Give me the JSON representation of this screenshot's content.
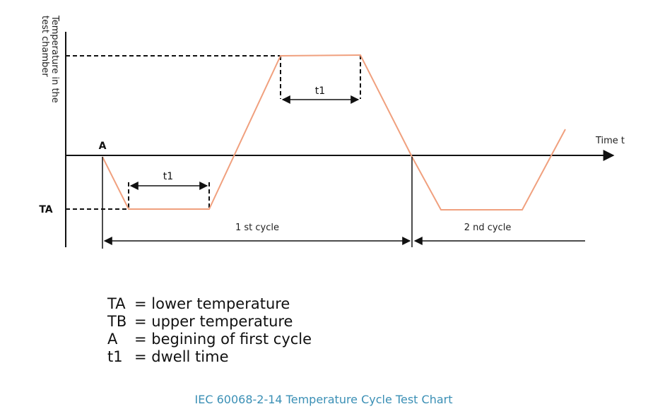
{
  "y_axis_label": [
    "Temperature in the",
    "test chamber"
  ],
  "x_axis_label": "Time t",
  "point_label": "A",
  "lower_level_label": "TA",
  "dwell_labels": [
    "t1",
    "t1"
  ],
  "cycles": [
    "1 st cycle",
    "2 nd cycle"
  ],
  "legend": [
    {
      "key": "TA",
      "definition": "= lower temperature"
    },
    {
      "key": "TB",
      "definition": "= upper temperature"
    },
    {
      "key": "A",
      "definition": "= begining of first cycle"
    },
    {
      "key": "t1",
      "definition": "= dwell time"
    }
  ],
  "caption": "IEC 60068-2-14 Temperature Cycle Test Chart"
}
